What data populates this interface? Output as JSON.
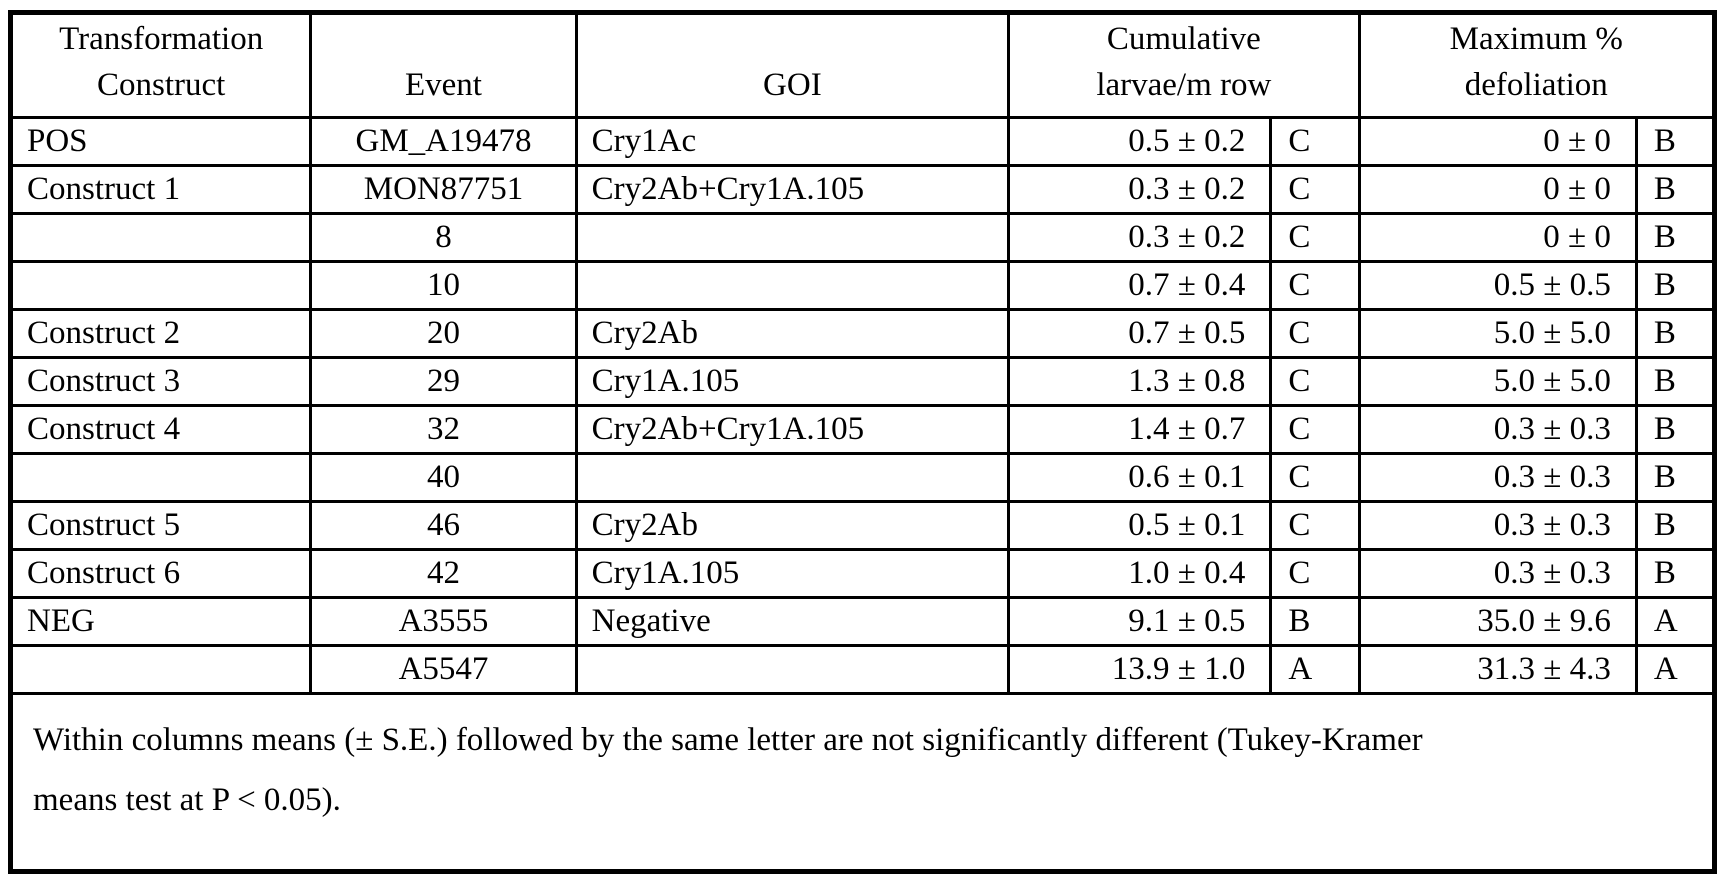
{
  "table": {
    "header": {
      "construct_line1": "Transformation",
      "construct_line2": "Construct",
      "event": "Event",
      "goi": "GOI",
      "cumulative_line1": "Cumulative",
      "cumulative_line2": "larvae/m row",
      "max_line1": "Maximum %",
      "max_line2": "defoliation"
    },
    "rows": [
      {
        "construct": "POS",
        "event": "GM_A19478",
        "goi": "Cry1Ac",
        "larvae": "0.5 ± 0.2",
        "larvae_grp": "C",
        "defol": "0 ± 0",
        "defol_grp": "B"
      },
      {
        "construct": "Construct 1",
        "event": "MON87751",
        "goi": "Cry2Ab+Cry1A.105",
        "larvae": "0.3 ± 0.2",
        "larvae_grp": "C",
        "defol": "0 ± 0",
        "defol_grp": "B"
      },
      {
        "construct": "",
        "event": "8",
        "goi": "",
        "larvae": "0.3 ± 0.2",
        "larvae_grp": "C",
        "defol": "0 ± 0",
        "defol_grp": "B"
      },
      {
        "construct": "",
        "event": "10",
        "goi": "",
        "larvae": "0.7 ± 0.4",
        "larvae_grp": "C",
        "defol": "0.5 ± 0.5",
        "defol_grp": "B"
      },
      {
        "construct": "Construct 2",
        "event": "20",
        "goi": "Cry2Ab",
        "larvae": "0.7 ± 0.5",
        "larvae_grp": "C",
        "defol": "5.0 ± 5.0",
        "defol_grp": "B"
      },
      {
        "construct": "Construct 3",
        "event": "29",
        "goi": "Cry1A.105",
        "larvae": "1.3 ± 0.8",
        "larvae_grp": "C",
        "defol": "5.0 ± 5.0",
        "defol_grp": "B"
      },
      {
        "construct": "Construct 4",
        "event": "32",
        "goi": "Cry2Ab+Cry1A.105",
        "larvae": "1.4 ± 0.7",
        "larvae_grp": "C",
        "defol": "0.3 ± 0.3",
        "defol_grp": "B"
      },
      {
        "construct": "",
        "event": "40",
        "goi": "",
        "larvae": "0.6 ± 0.1",
        "larvae_grp": "C",
        "defol": "0.3 ± 0.3",
        "defol_grp": "B"
      },
      {
        "construct": "Construct 5",
        "event": "46",
        "goi": "Cry2Ab",
        "larvae": "0.5 ± 0.1",
        "larvae_grp": "C",
        "defol": "0.3 ± 0.3",
        "defol_grp": "B"
      },
      {
        "construct": "Construct 6",
        "event": "42",
        "goi": "Cry1A.105",
        "larvae": "1.0 ± 0.4",
        "larvae_grp": "C",
        "defol": "0.3 ± 0.3",
        "defol_grp": "B"
      },
      {
        "construct": "NEG",
        "event": "A3555",
        "goi": "Negative",
        "larvae": "9.1 ± 0.5",
        "larvae_grp": "B",
        "defol": "35.0 ± 9.6",
        "defol_grp": "A"
      },
      {
        "construct": "",
        "event": "A5547",
        "goi": "",
        "larvae": "13.9 ± 1.0",
        "larvae_grp": "A",
        "defol": "31.3 ± 4.3",
        "defol_grp": "A"
      }
    ],
    "footnote": {
      "line1": "Within columns means (± S.E.) followed by the same letter are not significantly different (Tukey-Kramer",
      "line2": "means test at P < 0.05)."
    }
  }
}
